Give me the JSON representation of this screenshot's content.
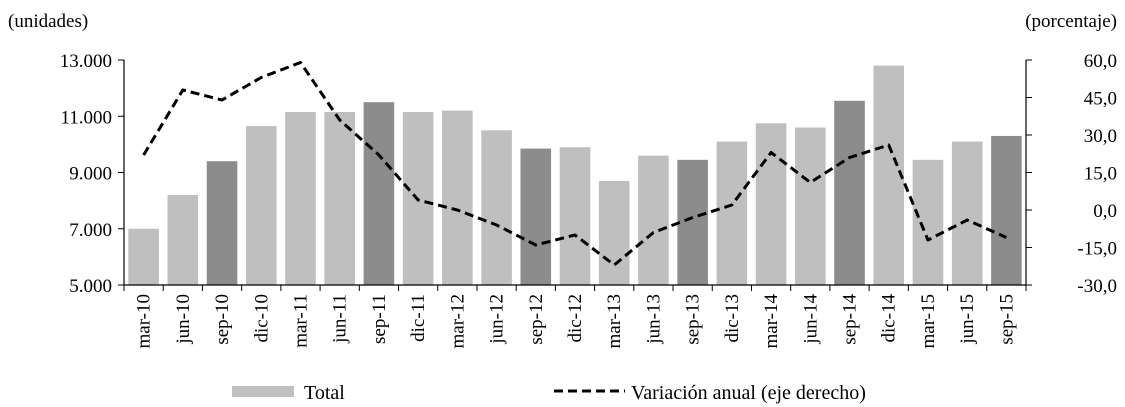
{
  "chart_data": {
    "type": "bar",
    "categories": [
      "mar-10",
      "jun-10",
      "sep-10",
      "dic-10",
      "mar-11",
      "jun-11",
      "sep-11",
      "dic-11",
      "mar-12",
      "jun-12",
      "sep-12",
      "dic-12",
      "mar-13",
      "jun-13",
      "sep-13",
      "dic-13",
      "mar-14",
      "jun-14",
      "sep-14",
      "dic-14",
      "mar-15",
      "jun-15",
      "sep-15"
    ],
    "series": [
      {
        "name": "Total",
        "type": "bar",
        "axis": "left",
        "color": "#bfbfbf",
        "highlight_color": "#8c8c8c",
        "highlight_categories": [
          "sep-10",
          "sep-11",
          "sep-12",
          "sep-13",
          "sep-14",
          "sep-15"
        ],
        "values": [
          7000,
          8200,
          9400,
          10650,
          11150,
          11150,
          11500,
          11150,
          11200,
          10500,
          9850,
          9900,
          8700,
          9600,
          9450,
          10100,
          10750,
          10600,
          11550,
          12800,
          9450,
          10100,
          10300
        ]
      },
      {
        "name": "Variación anual (eje derecho)",
        "type": "line",
        "style": "dashed",
        "axis": "right",
        "color": "#000000",
        "values": [
          22,
          48,
          44,
          53,
          59,
          36,
          22,
          4,
          0,
          -6,
          -14,
          -10,
          -22,
          -9,
          -3,
          2,
          23,
          11,
          21,
          26,
          -12,
          -4,
          -11
        ]
      }
    ],
    "left_axis": {
      "unit_label": "(unidades)",
      "ylim": [
        5000,
        13000
      ],
      "ticks": [
        5000,
        7000,
        9000,
        11000,
        13000
      ],
      "tick_labels": [
        "5.000",
        "7.000",
        "9.000",
        "11.000",
        "13.000"
      ]
    },
    "right_axis": {
      "unit_label": "(porcentaje)",
      "ylim": [
        -30,
        60
      ],
      "ticks": [
        -30,
        -15,
        0,
        15,
        30,
        45,
        60
      ],
      "tick_labels": [
        "-30,0",
        "-15,0",
        "0,0",
        "15,0",
        "30,0",
        "45,0",
        "60,0"
      ]
    },
    "grid": false,
    "legend_position": "bottom"
  }
}
